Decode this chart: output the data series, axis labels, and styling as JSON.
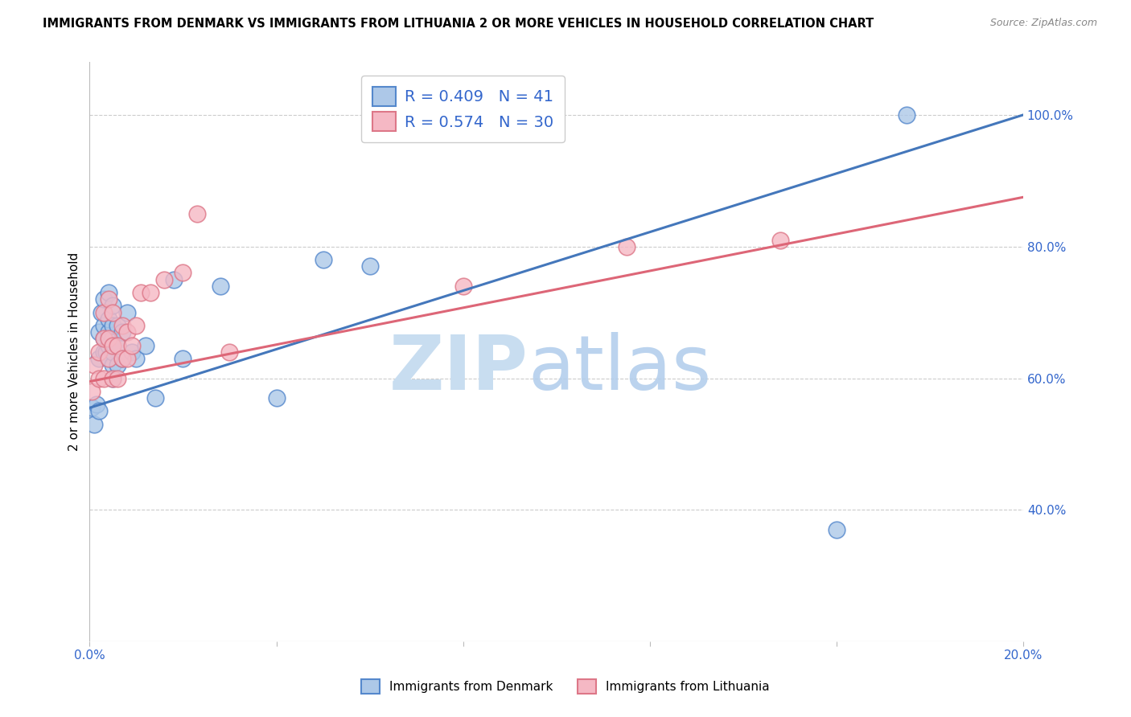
{
  "title": "IMMIGRANTS FROM DENMARK VS IMMIGRANTS FROM LITHUANIA 2 OR MORE VEHICLES IN HOUSEHOLD CORRELATION CHART",
  "source": "Source: ZipAtlas.com",
  "ylabel": "2 or more Vehicles in Household",
  "x_min": 0.0,
  "x_max": 0.2,
  "y_min": 0.2,
  "y_max": 1.08,
  "x_ticks": [
    0.0,
    0.04,
    0.08,
    0.12,
    0.16,
    0.2
  ],
  "x_tick_labels": [
    "0.0%",
    "",
    "",
    "",
    "",
    "20.0%"
  ],
  "y_ticks_right": [
    0.4,
    0.6,
    0.8,
    1.0
  ],
  "y_tick_labels_right": [
    "40.0%",
    "60.0%",
    "80.0%",
    "100.0%"
  ],
  "denmark_color": "#adc8e8",
  "denmark_edge_color": "#5588cc",
  "denmark_line_color": "#4477bb",
  "lithuania_color": "#f5b8c4",
  "lithuania_edge_color": "#dd7788",
  "lithuania_line_color": "#dd6677",
  "R_denmark": 0.409,
  "N_denmark": 41,
  "R_lithuania": 0.574,
  "N_lithuania": 30,
  "denmark_x": [
    0.0005,
    0.001,
    0.0015,
    0.002,
    0.002,
    0.002,
    0.0025,
    0.003,
    0.003,
    0.003,
    0.003,
    0.0035,
    0.004,
    0.004,
    0.004,
    0.004,
    0.004,
    0.005,
    0.005,
    0.005,
    0.005,
    0.005,
    0.005,
    0.006,
    0.006,
    0.006,
    0.007,
    0.007,
    0.008,
    0.009,
    0.01,
    0.012,
    0.014,
    0.018,
    0.02,
    0.028,
    0.04,
    0.05,
    0.06,
    0.16,
    0.175
  ],
  "denmark_y": [
    0.555,
    0.53,
    0.56,
    0.63,
    0.67,
    0.55,
    0.7,
    0.64,
    0.66,
    0.68,
    0.72,
    0.64,
    0.63,
    0.65,
    0.67,
    0.69,
    0.73,
    0.6,
    0.62,
    0.64,
    0.66,
    0.68,
    0.71,
    0.62,
    0.65,
    0.68,
    0.63,
    0.67,
    0.7,
    0.64,
    0.63,
    0.65,
    0.57,
    0.75,
    0.63,
    0.74,
    0.57,
    0.78,
    0.77,
    0.37,
    1.0
  ],
  "lithuania_x": [
    0.0005,
    0.001,
    0.002,
    0.002,
    0.003,
    0.003,
    0.003,
    0.004,
    0.004,
    0.004,
    0.005,
    0.005,
    0.005,
    0.006,
    0.006,
    0.007,
    0.007,
    0.008,
    0.008,
    0.009,
    0.01,
    0.011,
    0.013,
    0.016,
    0.02,
    0.023,
    0.03,
    0.08,
    0.115,
    0.148
  ],
  "lithuania_y": [
    0.58,
    0.62,
    0.6,
    0.64,
    0.6,
    0.66,
    0.7,
    0.63,
    0.66,
    0.72,
    0.6,
    0.65,
    0.7,
    0.6,
    0.65,
    0.63,
    0.68,
    0.63,
    0.67,
    0.65,
    0.68,
    0.73,
    0.73,
    0.75,
    0.76,
    0.85,
    0.64,
    0.74,
    0.8,
    0.81
  ],
  "dk_line_x0": 0.0,
  "dk_line_y0": 0.555,
  "dk_line_x1": 0.2,
  "dk_line_y1": 1.0,
  "lt_line_x0": 0.0,
  "lt_line_y0": 0.595,
  "lt_line_x1": 0.2,
  "lt_line_y1": 0.875,
  "dot_size": 220,
  "grid_color": "#cccccc",
  "border_color": "#bbbbbb"
}
